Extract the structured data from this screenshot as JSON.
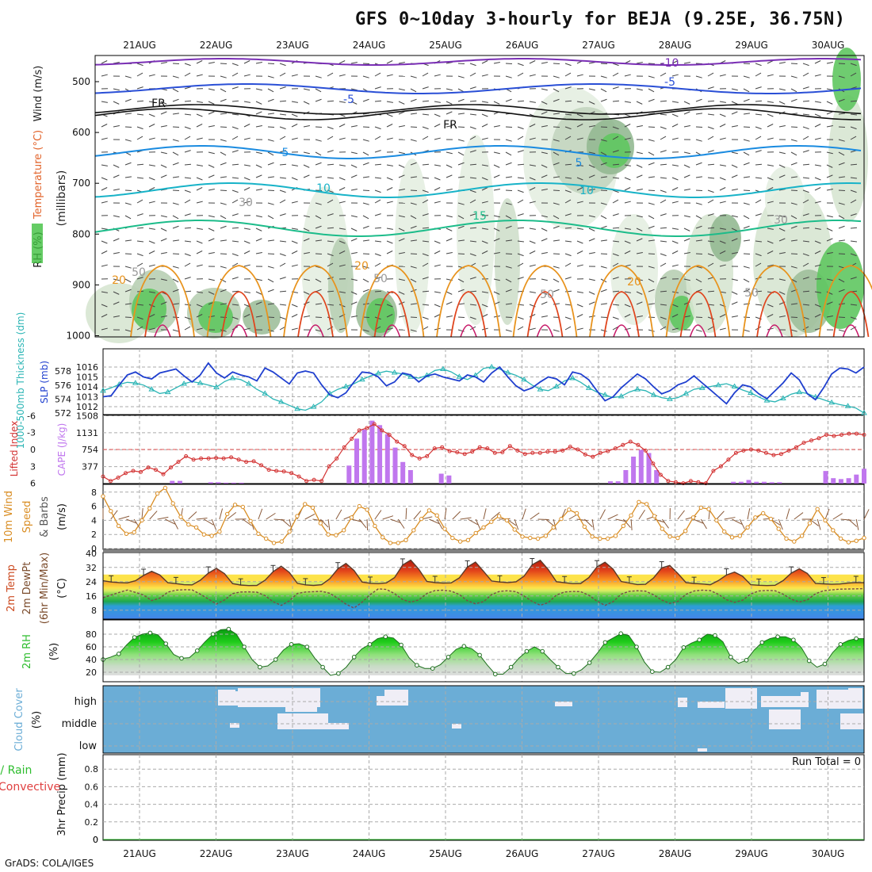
{
  "title": "GFS 0~10day 3-hourly for BEJA (9.25E, 36.75N)",
  "credit": "GrADS: COLA/IGES",
  "dates": [
    "21AUG",
    "22AUG",
    "23AUG",
    "24AUG",
    "25AUG",
    "26AUG",
    "27AUG",
    "28AUG",
    "29AUG",
    "30AUG"
  ],
  "colors": {
    "frame": "#000000",
    "grid": "#aaaaaa",
    "cloud": "#6badd6",
    "cloud_gap": "#f0eef6",
    "temp_fill": "#e34a1c",
    "rh_fill": "#2ebd2e",
    "slp": "#1f3fcf",
    "thick": "#2bb5b5",
    "lifted": "#d33434",
    "cape": "#c077ee",
    "wind": "#d98d23"
  },
  "chart_data": [
    {
      "type": "heatmap",
      "panel": "upper-air",
      "ylabel_parts": [
        "RH (%)",
        "Temperature (°C)",
        "Wind (m/s)",
        "(millibars)"
      ],
      "yticks": [
        500,
        600,
        700,
        800,
        900,
        1000
      ],
      "contour_labels": [
        "-10",
        "-5",
        "-5",
        "FR",
        "FR",
        "5",
        "5",
        "10",
        "10",
        "15",
        "20",
        "20",
        "20",
        "30",
        "30",
        "50",
        "50",
        "50",
        "50"
      ]
    },
    {
      "type": "line",
      "panel": "slp-thickness",
      "ylabel_left": "1000-500mb Thickness (dm)",
      "ylabel_right": "SLP (mb)",
      "yticks_thickness": [
        572,
        574,
        576,
        578
      ],
      "yticks_slp": [
        1012,
        1013,
        1014,
        1015,
        1016
      ],
      "series": [
        {
          "name": "SLP (mb)",
          "axis": "slp",
          "values": [
            1013.0,
            1013.1,
            1014.2,
            1015.2,
            1015.5,
            1015.0,
            1014.8,
            1015.4,
            1015.6,
            1015.8,
            1015.1,
            1014.5,
            1015.2,
            1016.4,
            1015.4,
            1014.9,
            1015.5,
            1015.2,
            1015.0,
            1014.6,
            1015.9,
            1015.5,
            1014.9,
            1014.3,
            1015.4,
            1015.6,
            1015.4,
            1014.2,
            1013.2,
            1012.9,
            1013.4,
            1014.5,
            1015.5,
            1015.4,
            1015.0,
            1014.1,
            1014.5,
            1015.4,
            1015.2,
            1014.5,
            1015.1,
            1015.3,
            1015.0,
            1014.8,
            1014.6,
            1015.2,
            1015.0,
            1014.5,
            1015.4,
            1016.0,
            1015.0,
            1014.1,
            1013.6,
            1013.9,
            1014.5,
            1015.0,
            1014.8,
            1014.2,
            1015.5,
            1015.3,
            1014.7,
            1013.6,
            1012.6,
            1013.0,
            1013.9,
            1014.6,
            1015.3,
            1014.8,
            1014.0,
            1013.3,
            1013.6,
            1014.2,
            1014.5,
            1015.1,
            1014.4,
            1013.7,
            1013.0,
            1012.3,
            1013.4,
            1014.2,
            1014.0,
            1013.3,
            1012.8,
            1013.6,
            1014.4,
            1015.4,
            1014.7,
            1013.3,
            1012.7,
            1013.9,
            1015.3,
            1015.9,
            1015.8,
            1015.4,
            1016.0
          ]
        },
        {
          "name": "1000-500mb Thickness (dm)",
          "axis": "thickness",
          "values": [
            575.2,
            575.6,
            576.1,
            576.4,
            576.3,
            576.0,
            575.4,
            574.8,
            575.0,
            575.6,
            576.2,
            576.5,
            576.3,
            576.0,
            575.7,
            576.5,
            577.0,
            576.8,
            576.2,
            575.4,
            574.8,
            574.0,
            573.6,
            573.1,
            572.6,
            572.4,
            572.9,
            573.6,
            574.8,
            575.4,
            575.8,
            576.2,
            576.8,
            577.3,
            577.7,
            578.0,
            577.8,
            577.6,
            577.2,
            577.0,
            577.4,
            578.1,
            578.3,
            577.9,
            577.2,
            576.8,
            577.4,
            578.4,
            578.6,
            578.3,
            577.8,
            577.4,
            576.8,
            576.0,
            575.4,
            575.2,
            575.8,
            576.6,
            577.0,
            576.4,
            575.6,
            575.0,
            574.6,
            574.2,
            574.4,
            575.0,
            575.4,
            575.2,
            574.6,
            574.2,
            574.0,
            574.2,
            574.8,
            575.4,
            575.6,
            575.8,
            576.0,
            576.2,
            575.8,
            575.3,
            574.9,
            574.3,
            573.8,
            573.6,
            574.1,
            574.7,
            575.0,
            574.8,
            574.3,
            573.9,
            573.5,
            573.2,
            573.0,
            572.7,
            572.0
          ]
        }
      ]
    },
    {
      "type": "bar",
      "panel": "lifted-cape",
      "ylabel_left": "Lifted Index",
      "ylabel_right": "CAPE (J/kg)",
      "yticks_li": [
        -6,
        -3,
        0,
        3,
        6
      ],
      "yticks_cape": [
        377,
        754,
        1131,
        1508
      ],
      "series": [
        {
          "name": "CAPE",
          "axis": "cape",
          "values": [
            0,
            0,
            0,
            0,
            0,
            0,
            0,
            0,
            0,
            60,
            60,
            0,
            0,
            0,
            30,
            30,
            20,
            20,
            20,
            0,
            0,
            0,
            0,
            0,
            0,
            0,
            0,
            0,
            0,
            0,
            0,
            0,
            400,
            1000,
            1200,
            1400,
            1300,
            1100,
            800,
            480,
            300,
            0,
            0,
            0,
            220,
            180,
            0,
            0,
            0,
            0,
            0,
            0,
            0,
            0,
            0,
            0,
            0,
            0,
            0,
            0,
            0,
            0,
            0,
            0,
            0,
            0,
            50,
            50,
            300,
            600,
            750,
            680,
            300,
            0,
            0,
            0,
            0,
            0,
            0,
            0,
            0,
            0,
            40,
            40,
            80,
            40,
            40,
            30,
            30,
            0,
            0,
            0,
            0,
            0,
            280,
            120,
            100,
            120,
            200,
            330
          ]
        },
        {
          "name": "Lifted Index",
          "axis": "li",
          "values": [
            4.8,
            5.6,
            5.0,
            4.2,
            3.8,
            4.0,
            3.2,
            3.6,
            4.4,
            3.2,
            2.2,
            1.2,
            1.8,
            1.6,
            1.6,
            1.5,
            1.6,
            1.4,
            1.8,
            2.2,
            2.1,
            2.8,
            3.6,
            3.8,
            3.9,
            4.2,
            4.8,
            5.6,
            5.4,
            5.6,
            3.0,
            1.6,
            -0.4,
            -1.9,
            -3.4,
            -3.8,
            -4.5,
            -3.4,
            -2.6,
            -1.4,
            -0.6,
            1.0,
            1.6,
            1.2,
            -0.2,
            -0.4,
            0.3,
            0.5,
            0.8,
            0.4,
            -0.4,
            -0.2,
            0.6,
            0.5,
            -0.6,
            0.2,
            0.8,
            0.6,
            0.6,
            0.4,
            0.4,
            0.2,
            -0.5,
            0.0,
            0.9,
            1.3,
            0.6,
            0.3,
            -0.2,
            -0.8,
            -1.4,
            -0.8,
            0.2,
            2.5,
            4.5,
            5.6,
            5.8,
            6.0,
            5.6,
            5.8,
            6.0,
            3.8,
            3.0,
            1.8,
            0.6,
            0.2,
            0.0,
            0.2,
            0.6,
            1.0,
            0.8,
            0.2,
            -0.4,
            -1.2,
            -1.6,
            -2.0,
            -2.6,
            -2.4,
            -2.6,
            -2.8,
            -2.8,
            -2.6
          ]
        }
      ]
    },
    {
      "type": "line",
      "panel": "wind-10m",
      "ylabel": "10m Wind Speed & Barbs (m/s)",
      "ylabel_parts": [
        "10m Wind",
        "Speed",
        "& Barbs",
        "(m/s)"
      ],
      "yticks": [
        0,
        2,
        4,
        6,
        8
      ],
      "series": [
        {
          "name": "10m Wind Speed",
          "values": [
            7.4,
            5.3,
            3.2,
            2.1,
            2.3,
            4.0,
            5.7,
            7.8,
            8.6,
            6.4,
            4.5,
            3.4,
            3.0,
            2.0,
            1.8,
            2.4,
            4.9,
            6.2,
            5.9,
            3.9,
            2.1,
            1.4,
            0.8,
            1.0,
            2.4,
            4.6,
            6.3,
            5.8,
            3.6,
            2.0,
            1.9,
            2.6,
            4.4,
            6.0,
            5.5,
            3.2,
            1.6,
            0.8,
            0.8,
            1.2,
            2.6,
            4.2,
            5.4,
            4.7,
            2.8,
            1.5,
            1.0,
            1.2,
            2.2,
            3.0,
            3.8,
            4.6,
            4.0,
            2.7,
            1.7,
            1.5,
            1.4,
            1.8,
            3.0,
            4.2,
            5.5,
            5.0,
            3.1,
            1.7,
            1.4,
            1.4,
            1.8,
            3.2,
            4.7,
            6.6,
            6.3,
            4.6,
            2.8,
            1.7,
            1.5,
            2.5,
            4.4,
            5.8,
            5.6,
            4.0,
            2.4,
            1.6,
            1.8,
            3.0,
            4.4,
            5.0,
            4.2,
            2.8,
            1.4,
            1.0,
            1.8,
            3.6,
            5.6,
            4.0,
            2.6,
            1.4,
            0.9,
            1.1,
            1.5
          ]
        }
      ]
    },
    {
      "type": "area",
      "panel": "temp-2m",
      "ylabel_parts": [
        "2m Temp",
        "2m DewPt",
        "(6hr Min/Max)",
        "(°C)"
      ],
      "yticks": [
        8,
        16,
        24,
        32,
        40
      ],
      "series": [
        {
          "name": "2m Temp",
          "values": [
            24.5,
            23.8,
            23.5,
            23.3,
            24.5,
            27.5,
            29.8,
            27.8,
            23.4,
            22.9,
            22.3,
            22.2,
            24.8,
            28.8,
            31.5,
            28.5,
            22.9,
            22.1,
            21.8,
            21.9,
            24.8,
            29.6,
            32.7,
            29.2,
            23.1,
            22.2,
            21.9,
            22.3,
            25.6,
            31.2,
            34.2,
            30.3,
            23.8,
            23.1,
            22.9,
            23.3,
            26.3,
            33.3,
            36.1,
            31.0,
            24.1,
            23.5,
            23.2,
            23.3,
            26.1,
            32.2,
            35.0,
            29.8,
            24.4,
            23.8,
            23.5,
            23.9,
            27.1,
            33.5,
            36.0,
            30.8,
            24.0,
            23.4,
            22.9,
            23.0,
            26.3,
            32.3,
            34.9,
            31.0,
            24.1,
            23.2,
            22.4,
            22.5,
            26.1,
            31.7,
            33.1,
            28.6,
            23.5,
            23.0,
            22.7,
            22.3,
            24.6,
            27.7,
            29.4,
            27.0,
            22.3,
            22.0,
            21.8,
            22.0,
            24.6,
            28.8,
            31.2,
            28.6,
            23.0,
            22.8,
            22.5,
            22.7,
            23.2,
            23.5,
            23.4
          ]
        },
        {
          "name": "2m DewPt",
          "values": [
            15.0,
            16.5,
            18.0,
            19.3,
            18.0,
            16.5,
            13.4,
            14.8,
            18.1,
            19.2,
            19.5,
            19.4,
            17.0,
            14.3,
            11.5,
            13.7,
            17.3,
            18.2,
            18.3,
            18.1,
            16.2,
            12.8,
            10.7,
            13.2,
            17.4,
            18.2,
            18.4,
            18.6,
            17.5,
            14.6,
            11.4,
            9.2,
            12.5,
            16.8,
            20.0,
            19.6,
            17.3,
            14.0,
            12.5,
            13.8,
            17.4,
            19.0,
            19.2,
            18.7,
            16.8,
            13.3,
            11.6,
            12.8,
            16.8,
            18.6,
            18.9,
            18.4,
            16.0,
            12.9,
            10.8,
            12.3,
            16.5,
            18.2,
            18.5,
            18.4,
            16.4,
            13.1,
            10.7,
            12.8,
            17.0,
            18.6,
            18.9,
            18.7,
            16.6,
            13.7,
            11.8,
            12.9,
            16.9,
            18.8,
            19.2,
            19.0,
            16.9,
            13.9,
            12.4,
            13.6,
            17.1,
            18.8,
            19.1,
            18.9,
            17.0,
            14.2,
            12.6,
            13.8,
            17.2,
            18.9,
            19.4,
            19.8,
            19.9,
            20.0,
            20.1
          ]
        }
      ]
    },
    {
      "type": "area",
      "panel": "rh-2m",
      "ylabel_parts": [
        "2m RH",
        "(%)"
      ],
      "yticks": [
        20,
        40,
        60,
        80
      ],
      "series": [
        {
          "name": "2m RH",
          "values": [
            40,
            44,
            49,
            63,
            75,
            80,
            82,
            79,
            65,
            48,
            42,
            43,
            54,
            68,
            80,
            87,
            88,
            80,
            60,
            40,
            28,
            30,
            40,
            55,
            64,
            65,
            60,
            42,
            28,
            15,
            18,
            28,
            44,
            57,
            64,
            73,
            76,
            74,
            63,
            43,
            31,
            26,
            26,
            32,
            44,
            56,
            61,
            57,
            47,
            31,
            17,
            17,
            28,
            42,
            53,
            60,
            53,
            40,
            28,
            18,
            18,
            24,
            35,
            50,
            67,
            74,
            81,
            78,
            60,
            36,
            21,
            20,
            28,
            40,
            59,
            66,
            71,
            80,
            78,
            68,
            44,
            34,
            39,
            55,
            67,
            73,
            76,
            76,
            71,
            59,
            38,
            28,
            33,
            51,
            64,
            70,
            73,
            73
          ]
        }
      ]
    },
    {
      "type": "heatmap",
      "panel": "cloud-cover",
      "ylabel_parts": [
        "Cloud Cover",
        "(%)"
      ],
      "ylabels": [
        "high",
        "middle",
        "low"
      ]
    },
    {
      "type": "line",
      "panel": "precip-3hr",
      "ylabel_parts": [
        "3hr Precip (mm)",
        "tal / Rain",
        "Convective"
      ],
      "yticks": [
        0,
        0.2,
        0.4,
        0.6,
        0.8
      ],
      "annotation": "Run Total = 0",
      "series": [
        {
          "values": [
            0,
            0,
            0,
            0,
            0,
            0,
            0,
            0,
            0,
            0,
            0,
            0,
            0,
            0,
            0,
            0,
            0,
            0,
            0,
            0,
            0,
            0,
            0,
            0,
            0,
            0,
            0,
            0,
            0,
            0,
            0,
            0,
            0,
            0,
            0,
            0,
            0,
            0,
            0,
            0,
            0,
            0,
            0,
            0,
            0,
            0,
            0,
            0,
            0,
            0,
            0,
            0,
            0,
            0,
            0,
            0,
            0,
            0,
            0,
            0,
            0,
            0,
            0,
            0,
            0,
            0,
            0,
            0,
            0,
            0,
            0,
            0,
            0,
            0,
            0,
            0,
            0,
            0,
            0,
            0,
            0,
            0,
            0,
            0,
            0,
            0,
            0,
            0,
            0,
            0,
            0,
            0,
            0,
            0,
            0,
            0,
            0,
            0,
            0,
            0
          ]
        }
      ]
    }
  ]
}
